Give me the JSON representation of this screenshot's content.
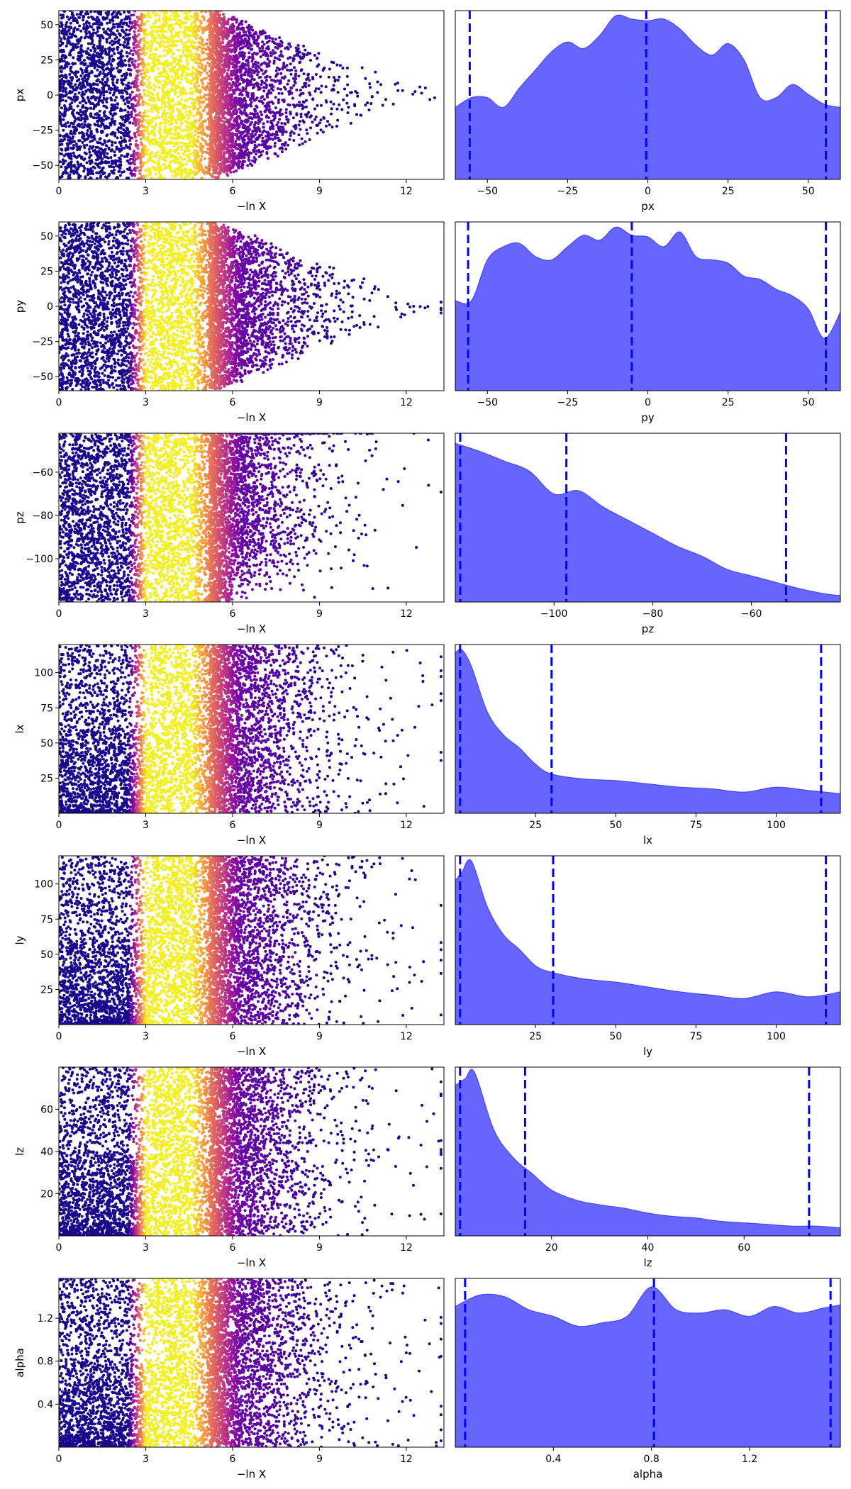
{
  "chart_data": [
    {
      "row": 1,
      "param": "px",
      "trace": {
        "type": "scatter",
        "xlabel": "−ln X",
        "ylabel": "px",
        "xlim": [
          0,
          13.3
        ],
        "ylim": [
          -60,
          60
        ],
        "xticks": [
          0,
          3,
          6,
          9,
          12
        ],
        "yticks": [
          -50,
          -25,
          0,
          25,
          50
        ],
        "ytick_labels": [
          "−50",
          "−25",
          "0",
          "25",
          "50"
        ],
        "colormap": "plasma"
      },
      "marginal": {
        "type": "area",
        "xlabel": "px",
        "xlim": [
          -60,
          60
        ],
        "xticks": [
          -50,
          -25,
          0,
          25,
          50
        ],
        "xtick_labels": [
          "−50",
          "−25",
          "0",
          "25",
          "50"
        ],
        "quantile_lines": [
          -55.5,
          -0.5,
          55.5
        ],
        "density_x": [
          -60,
          -55,
          -50,
          -45,
          -40,
          -35,
          -30,
          -25,
          -20,
          -15,
          -10,
          -5,
          0,
          5,
          10,
          15,
          20,
          25,
          30,
          35,
          40,
          45,
          50,
          55,
          60
        ],
        "density_y": [
          0.44,
          0.5,
          0.5,
          0.44,
          0.56,
          0.67,
          0.78,
          0.84,
          0.8,
          0.88,
          1.0,
          0.98,
          0.97,
          0.98,
          0.92,
          0.82,
          0.76,
          0.83,
          0.73,
          0.5,
          0.5,
          0.58,
          0.52,
          0.46,
          0.44
        ]
      }
    },
    {
      "row": 2,
      "param": "py",
      "trace": {
        "type": "scatter",
        "xlabel": "−ln X",
        "ylabel": "py",
        "xlim": [
          0,
          13.3
        ],
        "ylim": [
          -60,
          60
        ],
        "xticks": [
          0,
          3,
          6,
          9,
          12
        ],
        "yticks": [
          -50,
          -25,
          0,
          25,
          50
        ],
        "ytick_labels": [
          "−50",
          "−25",
          "0",
          "25",
          "50"
        ],
        "colormap": "plasma"
      },
      "marginal": {
        "type": "area",
        "xlabel": "py",
        "xlim": [
          -60,
          60
        ],
        "xticks": [
          -50,
          -25,
          0,
          25,
          50
        ],
        "xtick_labels": [
          "−50",
          "−25",
          "0",
          "25",
          "50"
        ],
        "quantile_lines": [
          -56,
          -5,
          55.5
        ],
        "density_x": [
          -60,
          -55,
          -50,
          -45,
          -40,
          -35,
          -30,
          -25,
          -20,
          -15,
          -10,
          -5,
          0,
          5,
          10,
          15,
          20,
          25,
          30,
          35,
          40,
          45,
          50,
          55,
          60
        ],
        "density_y": [
          0.55,
          0.55,
          0.8,
          0.88,
          0.9,
          0.82,
          0.8,
          0.88,
          0.95,
          0.92,
          1.0,
          0.95,
          0.94,
          0.88,
          0.97,
          0.82,
          0.8,
          0.78,
          0.7,
          0.68,
          0.62,
          0.58,
          0.5,
          0.32,
          0.48
        ]
      }
    },
    {
      "row": 3,
      "param": "pz",
      "trace": {
        "type": "scatter",
        "xlabel": "−ln X",
        "ylabel": "pz",
        "xlim": [
          0,
          13.3
        ],
        "ylim": [
          -120,
          -42
        ],
        "xticks": [
          0,
          3,
          6,
          9,
          12
        ],
        "yticks": [
          -100,
          -80,
          -60
        ],
        "ytick_labels": [
          "−100",
          "−80",
          "−60"
        ],
        "colormap": "plasma"
      },
      "marginal": {
        "type": "area",
        "xlabel": "pz",
        "xlim": [
          -120,
          -42
        ],
        "xticks": [
          -100,
          -80,
          -60
        ],
        "xtick_labels": [
          "−100",
          "−80",
          "−60"
        ],
        "quantile_lines": [
          -119,
          -97.5,
          -53
        ],
        "density_x": [
          -120,
          -115,
          -110,
          -105,
          -100,
          -95,
          -90,
          -85,
          -80,
          -75,
          -70,
          -65,
          -60,
          -55,
          -50,
          -45,
          -42
        ],
        "density_y": [
          0.97,
          0.92,
          0.86,
          0.8,
          0.66,
          0.68,
          0.58,
          0.5,
          0.42,
          0.34,
          0.28,
          0.2,
          0.16,
          0.12,
          0.08,
          0.05,
          0.04
        ]
      }
    },
    {
      "row": 4,
      "param": "lx",
      "trace": {
        "type": "scatter",
        "xlabel": "−ln X",
        "ylabel": "lx",
        "xlim": [
          0,
          13.3
        ],
        "ylim": [
          0,
          120
        ],
        "xticks": [
          0,
          3,
          6,
          9,
          12
        ],
        "yticks": [
          25,
          50,
          75,
          100
        ],
        "ytick_labels": [
          "25",
          "50",
          "75",
          "100"
        ],
        "colormap": "plasma"
      },
      "marginal": {
        "type": "area",
        "xlabel": "lx",
        "xlim": [
          0,
          120
        ],
        "xticks": [
          25,
          50,
          75,
          100
        ],
        "xtick_labels": [
          "25",
          "50",
          "75",
          "100"
        ],
        "quantile_lines": [
          1.5,
          30,
          114
        ],
        "density_x": [
          0,
          2,
          5,
          10,
          15,
          20,
          25,
          30,
          40,
          50,
          60,
          70,
          80,
          90,
          100,
          110,
          120
        ],
        "density_y": [
          0.98,
          1.0,
          0.9,
          0.62,
          0.48,
          0.4,
          0.3,
          0.24,
          0.21,
          0.2,
          0.18,
          0.16,
          0.15,
          0.13,
          0.16,
          0.14,
          0.12
        ]
      }
    },
    {
      "row": 5,
      "param": "ly",
      "trace": {
        "type": "scatter",
        "xlabel": "−ln X",
        "ylabel": "ly",
        "xlim": [
          0,
          13.3
        ],
        "ylim": [
          0,
          120
        ],
        "xticks": [
          0,
          3,
          6,
          9,
          12
        ],
        "yticks": [
          25,
          50,
          75,
          100
        ],
        "ytick_labels": [
          "25",
          "50",
          "75",
          "100"
        ],
        "colormap": "plasma"
      },
      "marginal": {
        "type": "area",
        "xlabel": "ly",
        "xlim": [
          0,
          120
        ],
        "xticks": [
          25,
          50,
          75,
          100
        ],
        "xtick_labels": [
          "25",
          "50",
          "75",
          "100"
        ],
        "quantile_lines": [
          1.5,
          30.5,
          115.5
        ],
        "density_x": [
          0,
          2,
          5,
          10,
          15,
          20,
          25,
          30,
          40,
          50,
          60,
          70,
          80,
          90,
          100,
          110,
          120
        ],
        "density_y": [
          0.88,
          0.93,
          1.0,
          0.72,
          0.55,
          0.46,
          0.36,
          0.32,
          0.28,
          0.26,
          0.23,
          0.2,
          0.18,
          0.16,
          0.2,
          0.17,
          0.2
        ]
      }
    },
    {
      "row": 6,
      "param": "lz",
      "trace": {
        "type": "scatter",
        "xlabel": "−ln X",
        "ylabel": "lz",
        "xlim": [
          0,
          13.3
        ],
        "ylim": [
          0,
          80
        ],
        "xticks": [
          0,
          3,
          6,
          9,
          12
        ],
        "yticks": [
          20,
          40,
          60
        ],
        "ytick_labels": [
          "20",
          "40",
          "60"
        ],
        "colormap": "plasma"
      },
      "marginal": {
        "type": "area",
        "xlabel": "lz",
        "xlim": [
          0,
          80
        ],
        "xticks": [
          20,
          40,
          60
        ],
        "xtick_labels": [
          "20",
          "40",
          "60"
        ],
        "quantile_lines": [
          1,
          14.5,
          73.5
        ],
        "density_x": [
          0,
          2,
          4,
          8,
          12,
          16,
          20,
          25,
          30,
          35,
          40,
          45,
          50,
          55,
          60,
          65,
          70,
          75,
          80
        ],
        "density_y": [
          0.92,
          0.96,
          1.0,
          0.65,
          0.48,
          0.38,
          0.28,
          0.22,
          0.19,
          0.17,
          0.14,
          0.12,
          0.11,
          0.09,
          0.08,
          0.07,
          0.06,
          0.06,
          0.05
        ]
      }
    },
    {
      "row": 7,
      "param": "alpha",
      "trace": {
        "type": "scatter",
        "xlabel": "−ln X",
        "ylabel": "alpha",
        "xlim": [
          0,
          13.3
        ],
        "ylim": [
          0,
          1.57
        ],
        "xticks": [
          0,
          3,
          6,
          9,
          12
        ],
        "yticks": [
          0.4,
          0.8,
          1.2
        ],
        "ytick_labels": [
          "0.4",
          "0.8",
          "1.2"
        ],
        "colormap": "plasma"
      },
      "marginal": {
        "type": "area",
        "xlabel": "alpha",
        "xlim": [
          0,
          1.57
        ],
        "xticks": [
          0.4,
          0.8,
          1.2
        ],
        "xtick_labels": [
          "0.4",
          "0.8",
          "1.2"
        ],
        "quantile_lines": [
          0.04,
          0.81,
          1.53
        ],
        "density_x": [
          0,
          0.1,
          0.2,
          0.3,
          0.4,
          0.5,
          0.6,
          0.7,
          0.8,
          0.9,
          1.0,
          1.1,
          1.2,
          1.3,
          1.4,
          1.5,
          1.57
        ],
        "density_y": [
          0.86,
          0.93,
          0.92,
          0.84,
          0.8,
          0.74,
          0.76,
          0.8,
          0.98,
          0.84,
          0.82,
          0.84,
          0.8,
          0.86,
          0.82,
          0.85,
          0.87
        ]
      }
    }
  ]
}
